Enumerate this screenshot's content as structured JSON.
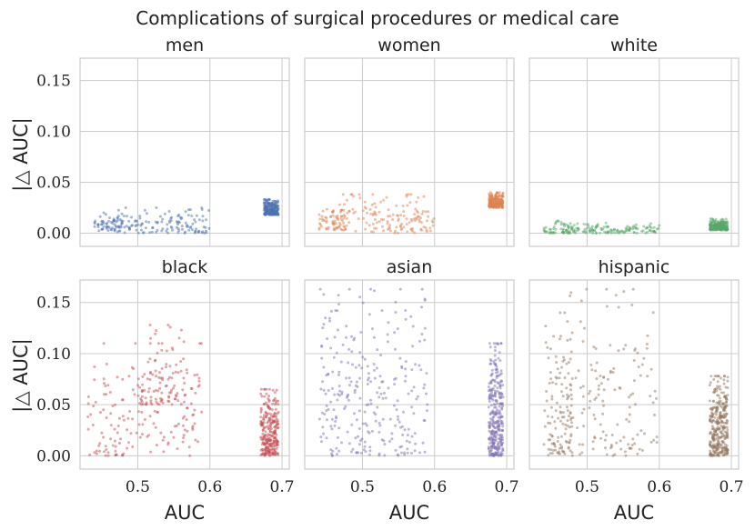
{
  "chart_data": {
    "type": "scatter",
    "title": "Complications of surgical procedures or medical care",
    "xlabel": "AUC",
    "ylabel": "|△ AUC|",
    "xlim": [
      0.42,
      0.71
    ],
    "ylim": [
      -0.013,
      0.172
    ],
    "xticks": [
      0.5,
      0.6,
      0.7
    ],
    "xtick_labels": [
      "0.5",
      "0.6",
      "0.7"
    ],
    "yticks": [
      0.0,
      0.05,
      0.1,
      0.15
    ],
    "ytick_labels": [
      "0.00",
      "0.05",
      "0.10",
      "0.15"
    ],
    "grid": true,
    "panels": [
      {
        "name": "men",
        "color": "#4c72b0",
        "clusters": [
          {
            "n": 60,
            "x": [
              0.44,
              0.48
            ],
            "y": [
              0.002,
              0.02
            ]
          },
          {
            "n": 130,
            "x": [
              0.47,
              0.6
            ],
            "y": [
              0.0,
              0.025
            ]
          },
          {
            "n": 220,
            "x": [
              0.675,
              0.695
            ],
            "y": [
              0.018,
              0.033
            ]
          }
        ]
      },
      {
        "name": "women",
        "color": "#dd8452",
        "clusters": [
          {
            "n": 70,
            "x": [
              0.44,
              0.48
            ],
            "y": [
              0.003,
              0.028
            ]
          },
          {
            "n": 140,
            "x": [
              0.47,
              0.6
            ],
            "y": [
              0.0,
              0.038
            ]
          },
          {
            "n": 220,
            "x": [
              0.675,
              0.695
            ],
            "y": [
              0.025,
              0.04
            ]
          }
        ]
      },
      {
        "name": "white",
        "color": "#55a868",
        "clusters": [
          {
            "n": 50,
            "x": [
              0.44,
              0.48
            ],
            "y": [
              0.0,
              0.012
            ]
          },
          {
            "n": 130,
            "x": [
              0.47,
              0.6
            ],
            "y": [
              0.0,
              0.01
            ]
          },
          {
            "n": 200,
            "x": [
              0.67,
              0.695
            ],
            "y": [
              0.003,
              0.014
            ]
          }
        ]
      },
      {
        "name": "black",
        "color": "#c44e52",
        "clusters": [
          {
            "n": 170,
            "x": [
              0.43,
              0.59
            ],
            "y": [
              0.0,
              0.11
            ]
          },
          {
            "n": 90,
            "x": [
              0.5,
              0.57
            ],
            "y": [
              0.05,
              0.128
            ]
          },
          {
            "n": 260,
            "x": [
              0.67,
              0.695
            ],
            "y": [
              0.0,
              0.065
            ]
          }
        ]
      },
      {
        "name": "asian",
        "color": "#8172b3",
        "clusters": [
          {
            "n": 280,
            "x": [
              0.44,
              0.59
            ],
            "y": [
              0.0,
              0.163
            ]
          },
          {
            "n": 320,
            "x": [
              0.675,
              0.695
            ],
            "y": [
              0.0,
              0.11
            ]
          }
        ]
      },
      {
        "name": "hispanic",
        "color": "#937860",
        "clusters": [
          {
            "n": 120,
            "x": [
              0.44,
              0.48
            ],
            "y": [
              0.0,
              0.14
            ]
          },
          {
            "n": 150,
            "x": [
              0.47,
              0.6
            ],
            "y": [
              0.0,
              0.163
            ]
          },
          {
            "n": 330,
            "x": [
              0.67,
              0.695
            ],
            "y": [
              0.0,
              0.078
            ]
          }
        ]
      }
    ]
  }
}
